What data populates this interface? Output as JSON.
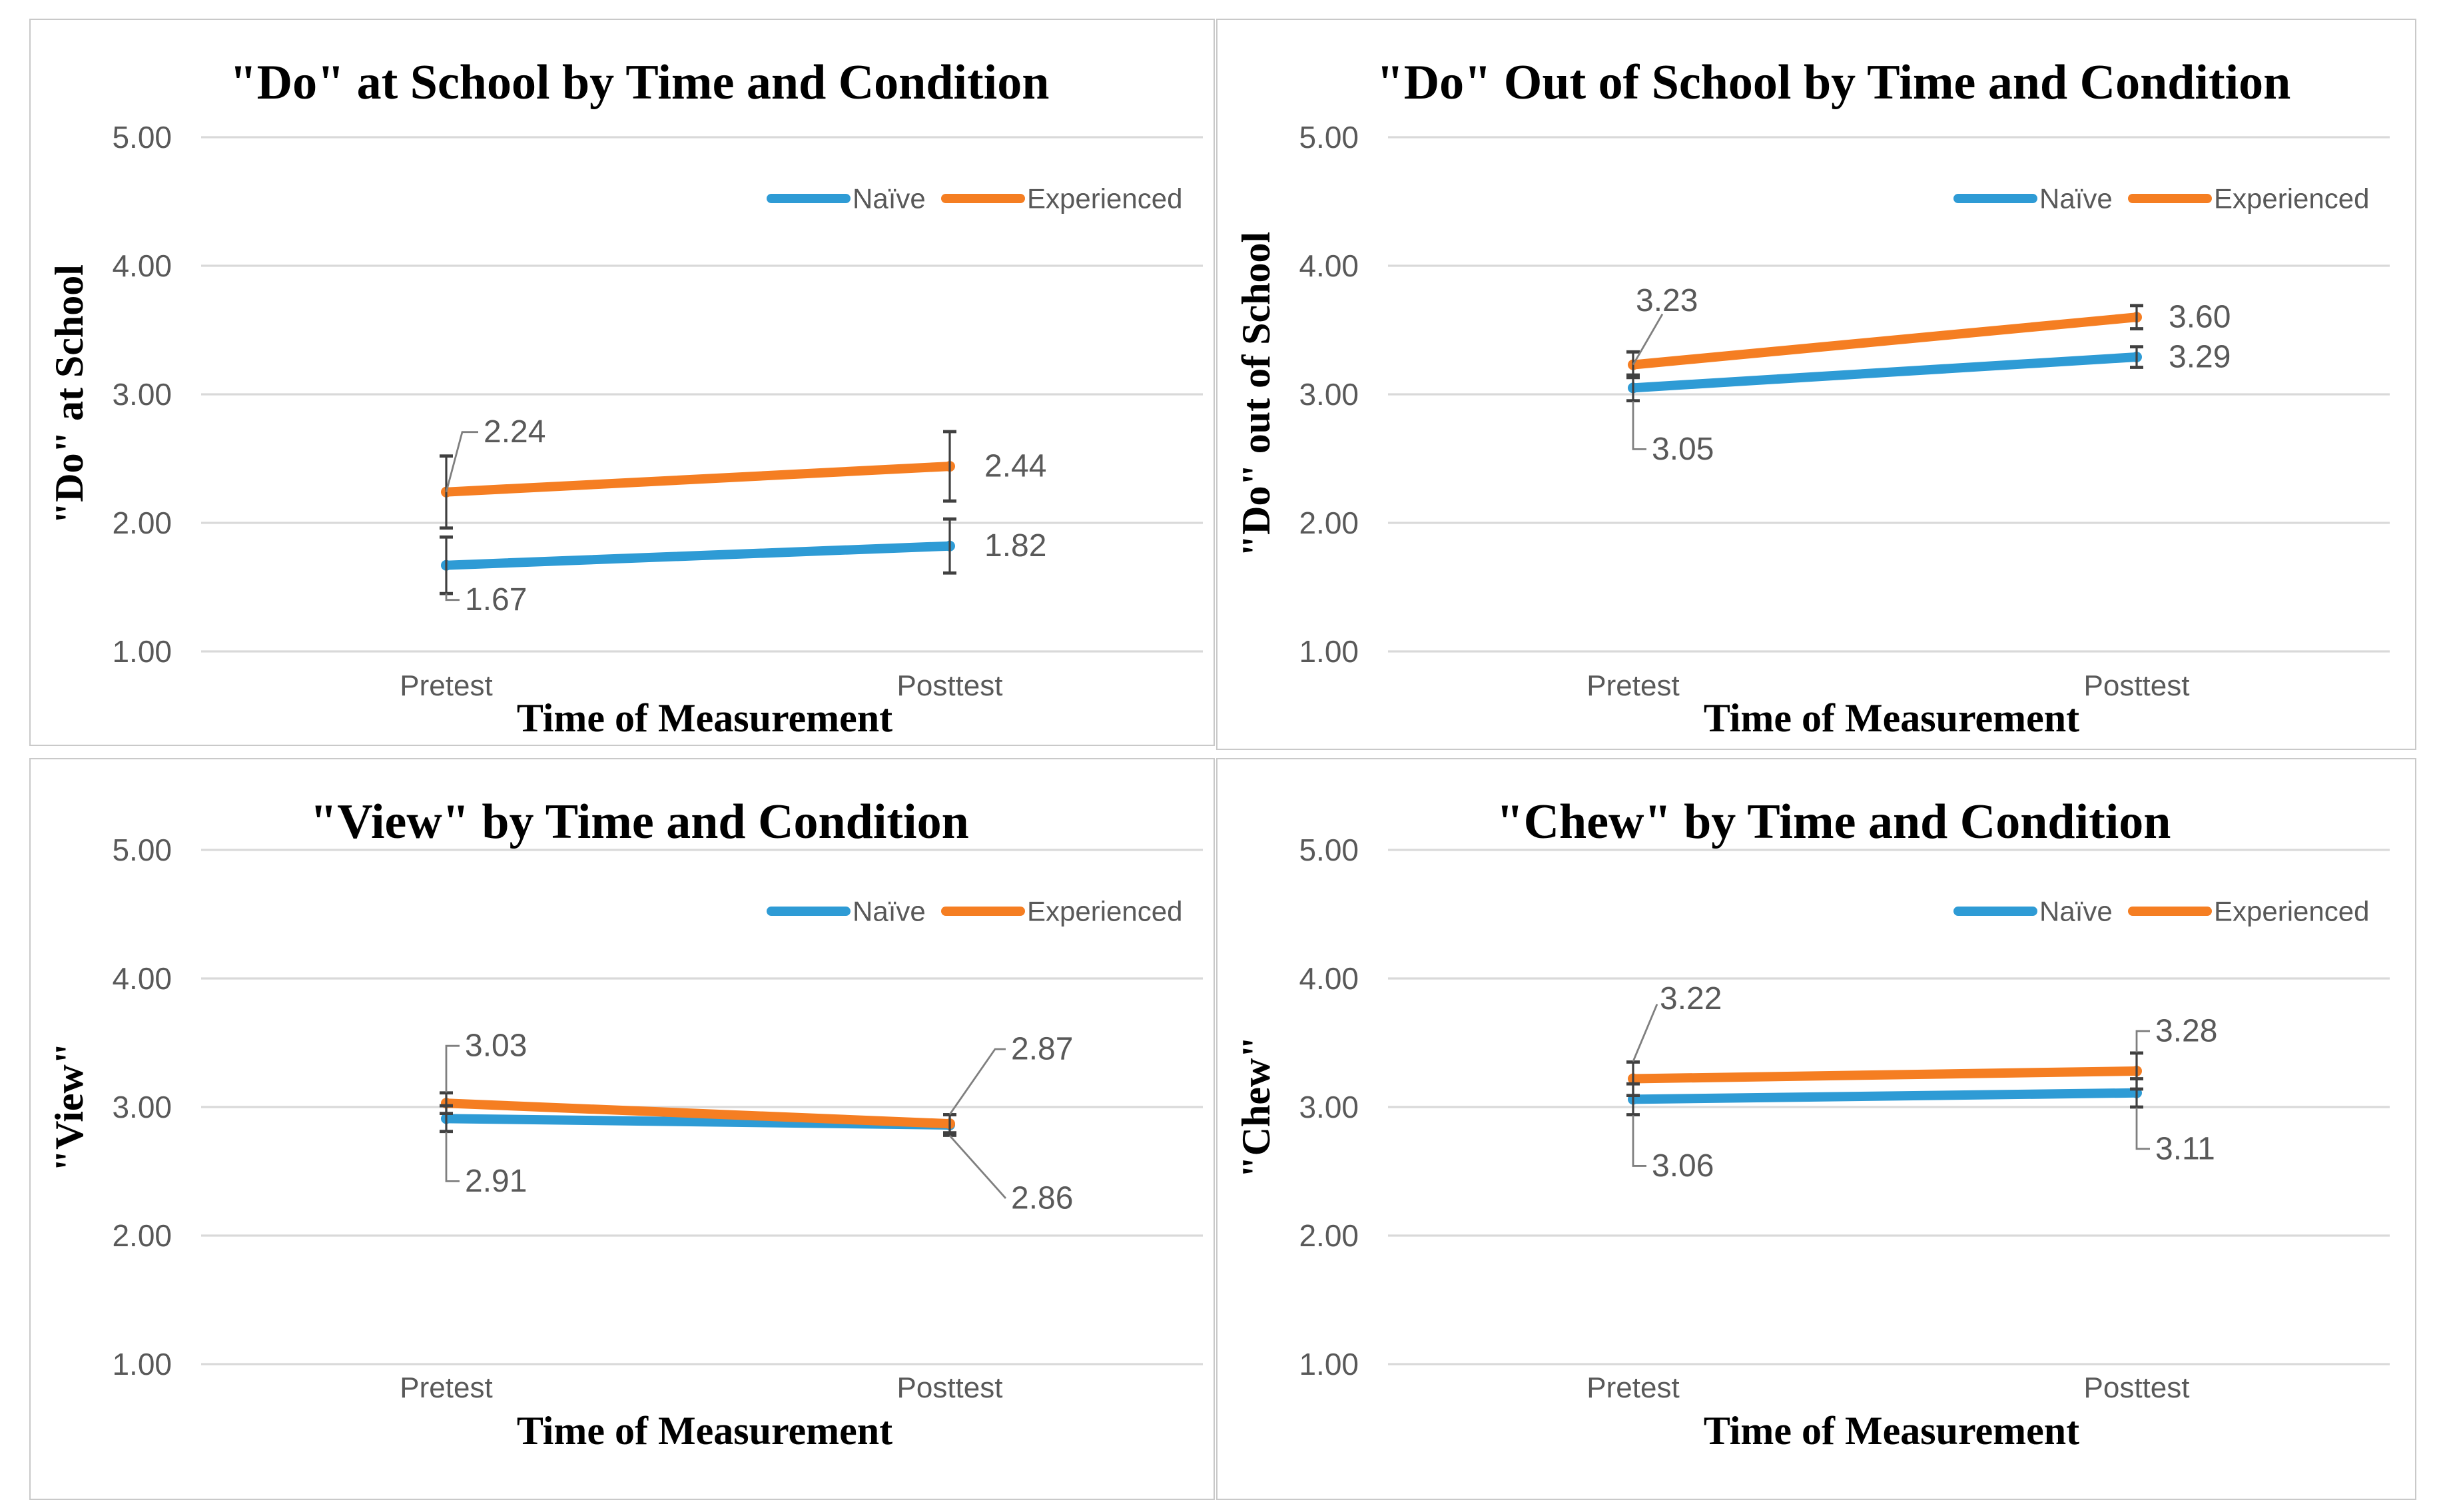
{
  "colors": {
    "naive": "#2E9BD5",
    "experienced": "#F57E22",
    "grid": "#D9D9D9",
    "error": "#404040",
    "leader": "#7F7F7F",
    "text_gray": "#595959",
    "title_text": "#000000",
    "panel_border": "#C9C9C9"
  },
  "chart_data": [
    {
      "type": "line",
      "title": "\"Do\" at School by Time and Condition",
      "ylabel": "\"Do\" at School",
      "xlabel": "Time of Measurement",
      "categories": [
        "Pretest",
        "Posttest"
      ],
      "y_ticks": [
        "5.00",
        "4.00",
        "3.00",
        "2.00",
        "1.00"
      ],
      "ylim": [
        1,
        5
      ],
      "grid": true,
      "legend_position": "inside-top-right",
      "series": [
        {
          "name": "Naïve",
          "color": "naive",
          "values": [
            1.67,
            1.82
          ],
          "errors": [
            0.22,
            0.21
          ]
        },
        {
          "name": "Experienced",
          "color": "experienced",
          "values": [
            2.24,
            2.44
          ],
          "errors": [
            0.28,
            0.27
          ]
        }
      ],
      "point_labels": [
        {
          "text": "2.24",
          "series": 1,
          "point": 0,
          "leader": [
            [
              0,
              0
            ],
            [
              12,
              -45
            ],
            [
              24,
              -45
            ]
          ],
          "text_at": [
            28,
            -45
          ]
        },
        {
          "text": "1.67",
          "series": 0,
          "point": 0,
          "leader": [
            [
              0,
              21
            ],
            [
              0,
              26
            ],
            [
              10,
              26
            ]
          ],
          "text_at": [
            14,
            26
          ]
        },
        {
          "text": "2.44",
          "series": 1,
          "point": 1,
          "leader": null,
          "text_at": [
            26,
            0
          ]
        },
        {
          "text": "1.82",
          "series": 0,
          "point": 1,
          "leader": null,
          "text_at": [
            26,
            0
          ]
        }
      ],
      "layout": {
        "plot_top": 88,
        "unit": 96.5,
        "grid_x": [
          128,
          880
        ],
        "cat_x": [
          312,
          690
        ],
        "tick_x": 106,
        "cat_label_y": 507,
        "legend_y": 134,
        "legend_items": [
          {
            "line": [
              556,
              612
            ],
            "text_x": 617
          },
          {
            "line": [
              687,
              743
            ],
            "text_x": 748
          }
        ]
      }
    },
    {
      "type": "line",
      "title": "\"Do\" Out of School by Time and Condition",
      "ylabel": "\"Do\" out of School",
      "xlabel": "Time of Measurement",
      "categories": [
        "Pretest",
        "Posttest"
      ],
      "y_ticks": [
        "5.00",
        "4.00",
        "3.00",
        "2.00",
        "1.00"
      ],
      "ylim": [
        1,
        5
      ],
      "grid": true,
      "legend_position": "inside-top-right",
      "series": [
        {
          "name": "Naïve",
          "color": "naive",
          "values": [
            3.05,
            3.29
          ],
          "errors": [
            0.1,
            0.08
          ]
        },
        {
          "name": "Experienced",
          "color": "experienced",
          "values": [
            3.23,
            3.6
          ],
          "errors": [
            0.1,
            0.09
          ]
        }
      ],
      "point_labels": [
        {
          "text": "3.23",
          "series": 1,
          "point": 0,
          "leader": [
            [
              0,
              0
            ],
            [
              22,
              -38
            ]
          ],
          "text_at": [
            2,
            -48
          ]
        },
        {
          "text": "3.05",
          "series": 0,
          "point": 0,
          "leader": [
            [
              0,
              10
            ],
            [
              0,
              46
            ],
            [
              10,
              46
            ]
          ],
          "text_at": [
            14,
            46
          ]
        },
        {
          "text": "3.60",
          "series": 1,
          "point": 1,
          "leader": null,
          "text_at": [
            24,
            0
          ]
        },
        {
          "text": "3.29",
          "series": 0,
          "point": 1,
          "leader": null,
          "text_at": [
            24,
            0
          ]
        }
      ],
      "layout": {
        "plot_top": 88,
        "unit": 96.5,
        "grid_x": [
          128,
          880
        ],
        "cat_x": [
          312,
          690
        ],
        "tick_x": 106,
        "cat_label_y": 507,
        "legend_y": 134,
        "legend_items": [
          {
            "line": [
              556,
              612
            ],
            "text_x": 617
          },
          {
            "line": [
              687,
              743
            ],
            "text_x": 748
          }
        ]
      }
    },
    {
      "type": "line",
      "title": "\"View\" by Time and Condition",
      "ylabel": "\"View\"",
      "xlabel": "Time of Measurement",
      "categories": [
        "Pretest",
        "Posttest"
      ],
      "y_ticks": [
        "5.00",
        "4.00",
        "3.00",
        "2.00",
        "1.00"
      ],
      "ylim": [
        1,
        5
      ],
      "grid": true,
      "legend_position": "inside-top-right",
      "series": [
        {
          "name": "Naïve",
          "color": "naive",
          "values": [
            2.91,
            2.86
          ],
          "errors": [
            0.1,
            0.08
          ]
        },
        {
          "name": "Experienced",
          "color": "experienced",
          "values": [
            3.03,
            2.87
          ],
          "errors": [
            0.08,
            0.07
          ]
        }
      ],
      "point_labels": [
        {
          "text": "3.03",
          "series": 1,
          "point": 0,
          "leader": [
            [
              0,
              -8
            ],
            [
              0,
              -43
            ],
            [
              10,
              -43
            ]
          ],
          "text_at": [
            14,
            -43
          ]
        },
        {
          "text": "2.91",
          "series": 0,
          "point": 0,
          "leader": [
            [
              0,
              10
            ],
            [
              0,
              47
            ],
            [
              10,
              47
            ]
          ],
          "text_at": [
            14,
            47
          ]
        },
        {
          "text": "2.87",
          "series": 1,
          "point": 1,
          "leader": [
            [
              0,
              -7
            ],
            [
              34,
              -56
            ],
            [
              42,
              -56
            ]
          ],
          "text_at": [
            46,
            -56
          ]
        },
        {
          "text": "2.86",
          "series": 0,
          "point": 1,
          "leader": [
            [
              0,
              8
            ],
            [
              42,
              55
            ]
          ],
          "text_at": [
            46,
            55
          ]
        }
      ],
      "layout": {
        "plot_top": 68,
        "unit": 96.5,
        "grid_x": [
          128,
          880
        ],
        "cat_x": [
          312,
          690
        ],
        "tick_x": 106,
        "cat_label_y": 479,
        "legend_y": 114,
        "legend_items": [
          {
            "line": [
              556,
              612
            ],
            "text_x": 617
          },
          {
            "line": [
              687,
              743
            ],
            "text_x": 748
          }
        ]
      }
    },
    {
      "type": "line",
      "title": "\"Chew\" by Time and Condition",
      "ylabel": "\"Chew\"",
      "xlabel": "Time of Measurement",
      "categories": [
        "Pretest",
        "Posttest"
      ],
      "y_ticks": [
        "5.00",
        "4.00",
        "3.00",
        "2.00",
        "1.00"
      ],
      "ylim": [
        1,
        5
      ],
      "grid": true,
      "legend_position": "inside-top-right",
      "series": [
        {
          "name": "Naïve",
          "color": "naive",
          "values": [
            3.06,
            3.11
          ],
          "errors": [
            0.12,
            0.11
          ]
        },
        {
          "name": "Experienced",
          "color": "experienced",
          "values": [
            3.22,
            3.28
          ],
          "errors": [
            0.13,
            0.14
          ]
        }
      ],
      "point_labels": [
        {
          "text": "3.22",
          "series": 1,
          "point": 0,
          "leader": [
            [
              0,
              -13
            ],
            [
              18,
              -56
            ]
          ],
          "text_at": [
            20,
            -60
          ]
        },
        {
          "text": "3.06",
          "series": 0,
          "point": 0,
          "leader": [
            [
              0,
              12
            ],
            [
              0,
              50
            ],
            [
              10,
              50
            ]
          ],
          "text_at": [
            14,
            50
          ]
        },
        {
          "text": "3.28",
          "series": 1,
          "point": 1,
          "leader": [
            [
              0,
              -14
            ],
            [
              0,
              -30
            ],
            [
              10,
              -30
            ]
          ],
          "text_at": [
            14,
            -30
          ]
        },
        {
          "text": "3.11",
          "series": 0,
          "point": 1,
          "leader": [
            [
              0,
              11
            ],
            [
              0,
              42
            ],
            [
              10,
              42
            ]
          ],
          "text_at": [
            14,
            42
          ]
        }
      ],
      "layout": {
        "plot_top": 68,
        "unit": 96.5,
        "grid_x": [
          128,
          880
        ],
        "cat_x": [
          312,
          690
        ],
        "tick_x": 106,
        "cat_label_y": 479,
        "legend_y": 114,
        "legend_items": [
          {
            "line": [
              556,
              612
            ],
            "text_x": 617
          },
          {
            "line": [
              687,
              743
            ],
            "text_x": 748
          }
        ]
      }
    }
  ]
}
